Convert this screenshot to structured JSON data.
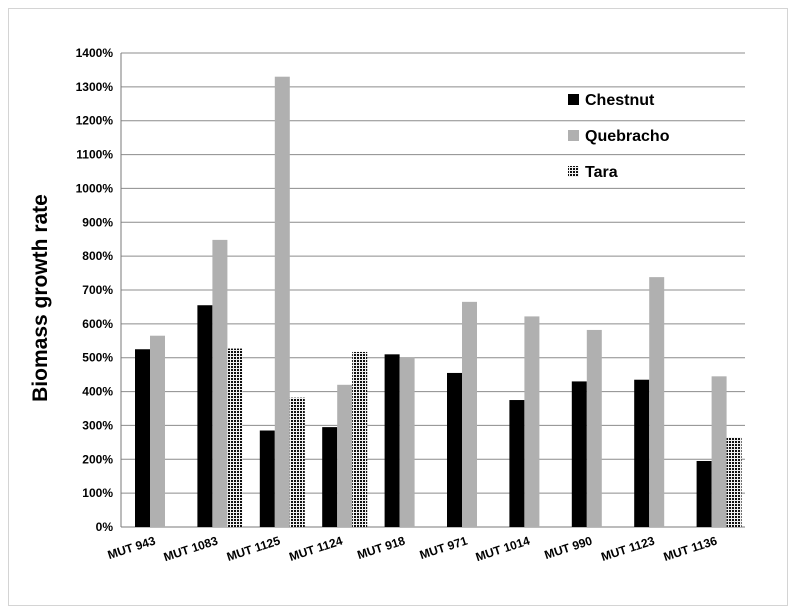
{
  "chart_data": {
    "type": "bar",
    "title": "",
    "xlabel": "",
    "ylabel": "Biomass growth rate",
    "ylim": [
      0,
      1400
    ],
    "yticks": [
      0,
      100,
      200,
      300,
      400,
      500,
      600,
      700,
      800,
      900,
      1000,
      1100,
      1200,
      1300,
      1400
    ],
    "ytick_format": "%",
    "grid": true,
    "legend_position": "top-right",
    "categories": [
      "MUT 943",
      "MUT 1083",
      "MUT 1125",
      "MUT 1124",
      "MUT 918",
      "MUT 971",
      "MUT 1014",
      "MUT 990",
      "MUT 1123",
      "MUT 1136"
    ],
    "series": [
      {
        "name": "Chestnut",
        "color": "#000000",
        "pattern": "solid",
        "values": [
          525,
          655,
          285,
          295,
          510,
          455,
          375,
          430,
          435,
          195
        ]
      },
      {
        "name": "Quebracho",
        "color": "#b0b0b0",
        "pattern": "solid",
        "values": [
          565,
          848,
          1330,
          420,
          500,
          665,
          622,
          582,
          738,
          445
        ]
      },
      {
        "name": "Tara",
        "color": "#1a1a1a",
        "pattern": "crosshatch",
        "values": [
          null,
          527,
          382,
          517,
          null,
          null,
          null,
          null,
          null,
          265
        ]
      }
    ]
  }
}
